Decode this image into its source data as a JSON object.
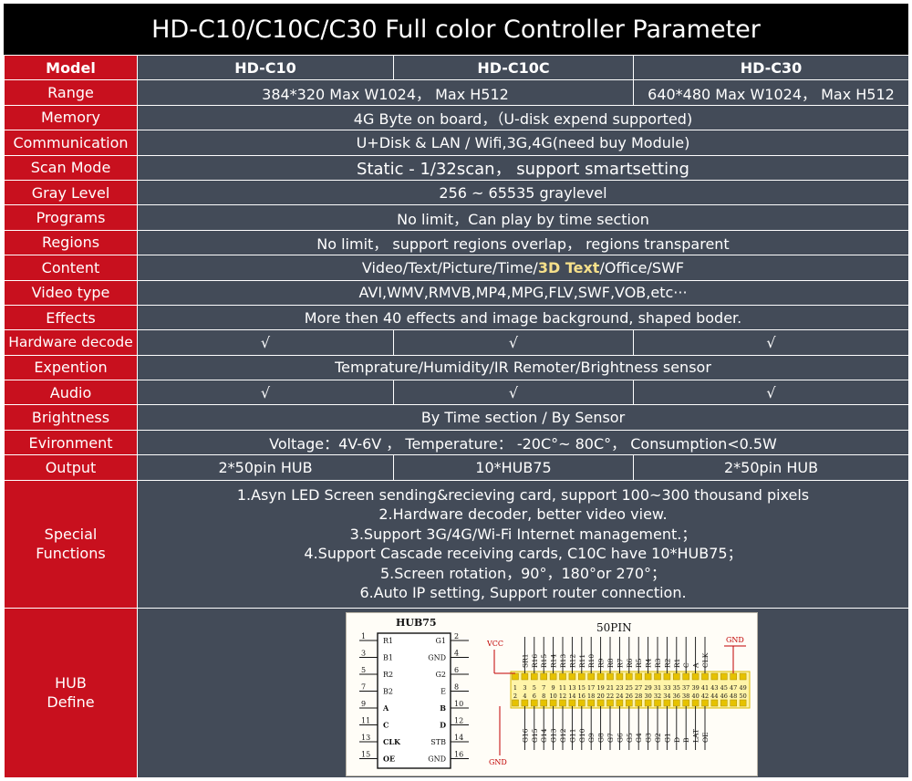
{
  "title": "HD-C10/C10C/C30 Full color Controller Parameter",
  "header": {
    "label": "Model",
    "models": [
      "HD-C10",
      "HD-C10C",
      "HD-C30"
    ]
  },
  "range": {
    "label": "Range",
    "c10_c10c": "384*320 Max W1024，  Max H512",
    "c30": "640*480 Max W1024，  Max H512"
  },
  "memory": {
    "label": "Memory",
    "value": "4G Byte on board，（U-disk expend supported)"
  },
  "communication": {
    "label": "Communication",
    "value": "U+Disk & LAN / Wifi,3G,4G(need buy Module)"
  },
  "scan_mode": {
    "label": "Scan Mode",
    "value": "Static - 1/32scan，  support smartsetting"
  },
  "gray_level": {
    "label": "Gray Level",
    "value": "256 ~ 65535 graylevel"
  },
  "programs": {
    "label": "Programs",
    "value": "No limit，Can play by time section"
  },
  "regions": {
    "label": "Regions",
    "value": "No limit，  support regions overlap，  regions transparent"
  },
  "content": {
    "label": "Content",
    "before": "Video/Text/Picture/Time/",
    "highlight": "3D Text",
    "after": "/Office/SWF"
  },
  "video_type": {
    "label": "Video type",
    "value": "AVI,WMV,RMVB,MP4,MPG,FLV,SWF,VOB,etc···"
  },
  "effects": {
    "label": "Effects",
    "value": "More then 40 effects and image background, shaped boder."
  },
  "hardware_decode": {
    "label": "Hardware decode",
    "c10": "√",
    "c10c": "√",
    "c30": "√"
  },
  "expention": {
    "label": "Expention",
    "value": "Temprature/Humidity/IR Remoter/Brightness sensor"
  },
  "audio": {
    "label": "Audio",
    "c10": "√",
    "c10c": "√",
    "c30": "√"
  },
  "brightness": {
    "label": "Brightness",
    "value": "By Time section / By Sensor"
  },
  "environment": {
    "label": "Evironment",
    "value": "Voltage：4V-6V ，  Temperature： -20C°~ 80C°，   Consumption<0.5W"
  },
  "output": {
    "label": "Output",
    "c10": "2*50pin HUB",
    "c10c": "10*HUB75",
    "c30": "2*50pin HUB"
  },
  "special": {
    "label_line1": "Special",
    "label_line2": "Functions",
    "lines": [
      "1.Asyn LED Screen sending&recieving card, support 100~300 thousand pixels",
      "2.Hardware decoder, better video view.",
      "3.Support 3G/4G/Wi-Fi Internet management.；",
      "4.Support Cascade receiving cards, C10C have 10*HUB75；",
      "5.Screen rotation，90°，180°or 270°；",
      "6.Auto IP setting, Support router connection."
    ]
  },
  "hub": {
    "label_line1": "HUB",
    "label_line2": "Define",
    "hub75": {
      "title": "HUB75",
      "left_pins": [
        "1",
        "3",
        "5",
        "7",
        "9",
        "11",
        "13",
        "15"
      ],
      "right_pins": [
        "2",
        "4",
        "6",
        "8",
        "10",
        "12",
        "14",
        "16"
      ],
      "left_signals": [
        "R1",
        "B1",
        "R2",
        "B2",
        "A",
        "C",
        "CLK",
        "OE"
      ],
      "right_signals": [
        "G1",
        "GND",
        "G2",
        "E",
        "B",
        "D",
        "STB",
        "GND"
      ]
    },
    "pin50": {
      "title": "50PIN",
      "vcc": "VCC",
      "gnd_top": "GND",
      "gnd_bottom": "GND",
      "top_signals": [
        "SR1",
        "R16",
        "R15",
        "R14",
        "R13",
        "R12",
        "R11",
        "R10",
        "R9",
        "R8",
        "R7",
        "R6",
        "R5",
        "R4",
        "R3",
        "R2",
        "R1",
        "C",
        "A",
        "CLK"
      ],
      "bottom_signals": [
        "G16",
        "G15",
        "G14",
        "G13",
        "G12",
        "G11",
        "G10",
        "G9",
        "G8",
        "G7",
        "G6",
        "G5",
        "G4",
        "G3",
        "G2",
        "G1",
        "D",
        "B",
        "LAT",
        "OE"
      ],
      "top_numbers": [
        "1",
        "3",
        "5",
        "7",
        "9",
        "11",
        "13",
        "15",
        "17",
        "19",
        "21",
        "23",
        "25",
        "27",
        "29",
        "31",
        "33",
        "35",
        "37",
        "39",
        "41",
        "43",
        "45",
        "47",
        "49"
      ],
      "bottom_numbers": [
        "2",
        "4",
        "6",
        "8",
        "10",
        "12",
        "14",
        "16",
        "18",
        "20",
        "22",
        "24",
        "26",
        "28",
        "30",
        "32",
        "34",
        "36",
        "38",
        "40",
        "42",
        "44",
        "46",
        "48",
        "50"
      ]
    }
  }
}
